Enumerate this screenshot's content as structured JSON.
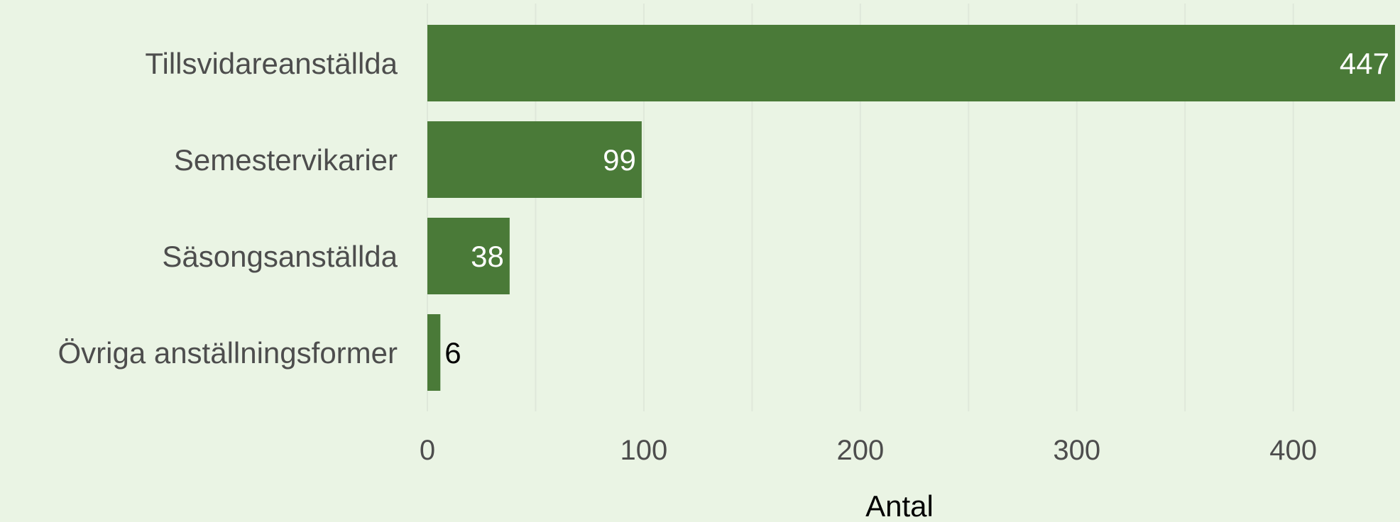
{
  "chart_data": {
    "type": "bar",
    "orientation": "horizontal",
    "categories": [
      "Tillsvidareanställda",
      "Semestervikarier",
      "Säsongsanställda",
      "Övriga anställningsformer"
    ],
    "values": [
      447,
      99,
      38,
      6
    ],
    "title": "",
    "xlabel": "Antal",
    "ylabel": "",
    "xlim": [
      0,
      447
    ],
    "xticks": [
      0,
      100,
      200,
      300,
      400
    ],
    "xtick_labels": [
      "0",
      "100",
      "200",
      "300",
      "400"
    ],
    "grid": true,
    "legend": "none",
    "data_labels": [
      "447",
      "99",
      "38",
      "6"
    ],
    "colors": {
      "bar": "#4a7a38",
      "background": "#eaf4e4",
      "label_inside": "#ffffff",
      "label_outside": "#000000",
      "tick_text": "#4d4d4d",
      "axis_title": "#000000"
    }
  }
}
